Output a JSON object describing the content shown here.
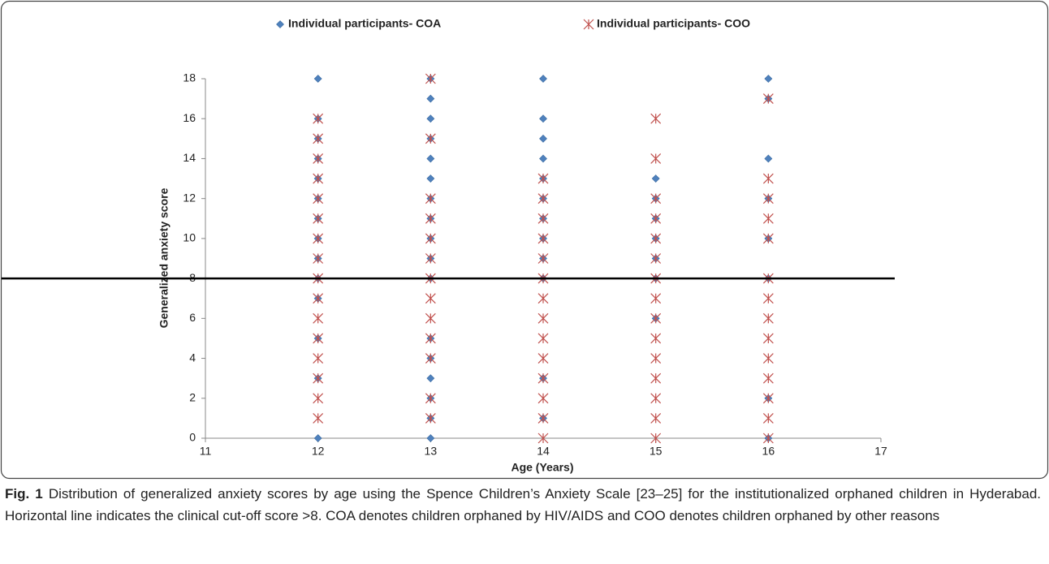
{
  "chart_data": {
    "type": "scatter",
    "xlabel": "Age (Years)",
    "ylabel": "Generalized anxiety score",
    "xlim": [
      11,
      17
    ],
    "xticks": [
      11,
      12,
      13,
      14,
      15,
      16,
      17
    ],
    "ylim": [
      0,
      18
    ],
    "yticks": [
      0,
      2,
      4,
      6,
      8,
      10,
      12,
      14,
      16,
      18
    ],
    "cutoff_line": 8,
    "legend": "top",
    "series": [
      {
        "name": "Individual participants- COA",
        "color": "#4f81bd",
        "marker": "diamond",
        "x": [
          12,
          12,
          12,
          12,
          12,
          12,
          12,
          12,
          12,
          12,
          12,
          12,
          12,
          12,
          13,
          13,
          13,
          13,
          13,
          13,
          13,
          13,
          13,
          13,
          13,
          13,
          13,
          13,
          13,
          13,
          13,
          14,
          14,
          14,
          14,
          14,
          14,
          14,
          14,
          14,
          14,
          14,
          14,
          15,
          15,
          15,
          15,
          15,
          15,
          15,
          16,
          16,
          16,
          16,
          16,
          16,
          16,
          16
        ],
        "values": [
          18,
          16,
          15,
          14,
          13,
          12,
          11,
          10,
          9,
          8,
          7,
          5,
          3,
          0,
          18,
          17,
          16,
          15,
          14,
          13,
          12,
          11,
          10,
          9,
          8,
          5,
          4,
          3,
          2,
          1,
          0,
          18,
          16,
          15,
          14,
          13,
          12,
          11,
          10,
          9,
          8,
          3,
          1,
          13,
          12,
          11,
          10,
          9,
          8,
          6,
          18,
          17,
          14,
          12,
          10,
          8,
          2,
          0
        ]
      },
      {
        "name": "Individual participants- COO",
        "color": "#c0504d",
        "marker": "asterisk",
        "x": [
          12,
          12,
          12,
          12,
          12,
          12,
          12,
          12,
          12,
          12,
          12,
          12,
          12,
          12,
          12,
          12,
          13,
          13,
          13,
          13,
          13,
          13,
          13,
          13,
          13,
          13,
          13,
          13,
          13,
          14,
          14,
          14,
          14,
          14,
          14,
          14,
          14,
          14,
          14,
          14,
          14,
          14,
          14,
          15,
          15,
          15,
          15,
          15,
          15,
          15,
          15,
          15,
          15,
          15,
          15,
          15,
          15,
          15,
          16,
          16,
          16,
          16,
          16,
          16,
          16,
          16,
          16,
          16,
          16,
          16,
          16,
          16
        ],
        "values": [
          16,
          15,
          14,
          13,
          12,
          11,
          10,
          9,
          8,
          7,
          6,
          5,
          4,
          3,
          2,
          1,
          18,
          15,
          12,
          11,
          10,
          9,
          8,
          7,
          6,
          5,
          4,
          2,
          1,
          13,
          12,
          11,
          10,
          9,
          8,
          7,
          6,
          5,
          4,
          3,
          2,
          1,
          0,
          16,
          14,
          12,
          11,
          10,
          9,
          8,
          7,
          6,
          5,
          4,
          3,
          2,
          1,
          0,
          17,
          13,
          12,
          11,
          10,
          8,
          7,
          6,
          5,
          4,
          3,
          2,
          1,
          0
        ]
      }
    ]
  },
  "caption": {
    "label": "Fig. 1",
    "text": "Distribution of generalized anxiety scores by age using the Spence Children’s Anxiety Scale [23–25] for the institutionalized orphaned children in Hyderabad. Horizontal line indicates the clinical cut-off score >8. COA denotes children orphaned by HIV/AIDS and COO denotes children orphaned by other reasons"
  }
}
